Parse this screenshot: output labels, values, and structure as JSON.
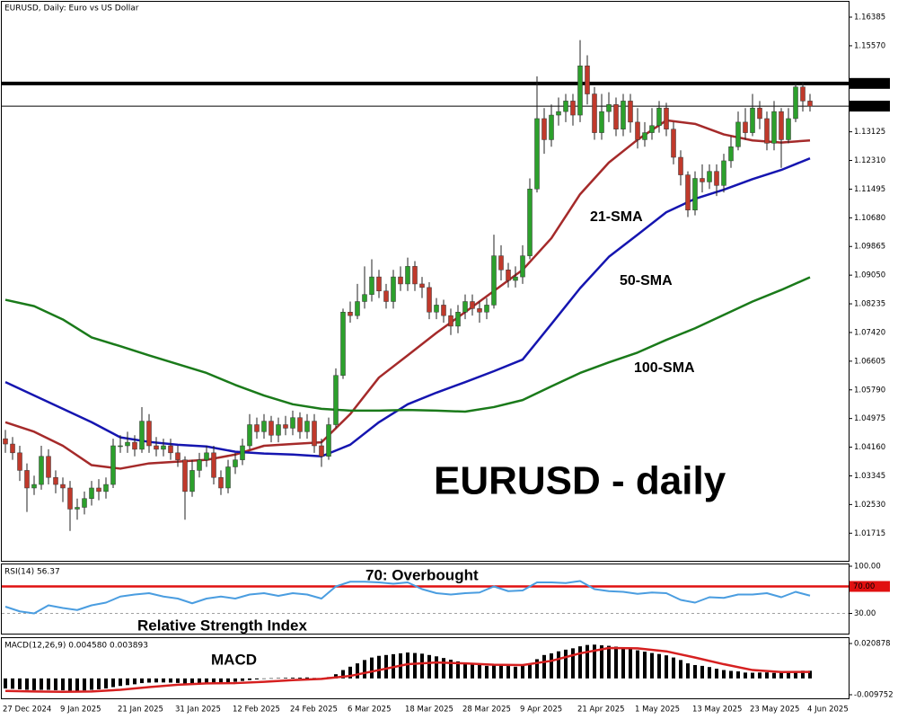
{
  "chart_data": [
    {
      "type": "candlestick",
      "title": "EURUSD, Daily:  Euro vs US Dollar",
      "categories": [
        "27 Dec 2024",
        null,
        null,
        null,
        null,
        null,
        null,
        null,
        "9 Jan 2025",
        null,
        null,
        null,
        null,
        null,
        null,
        null,
        "21 Jan 2025",
        null,
        null,
        null,
        null,
        null,
        null,
        null,
        "31 Jan 2025",
        null,
        null,
        null,
        null,
        null,
        null,
        null,
        "12 Feb 2025",
        null,
        null,
        null,
        null,
        null,
        null,
        null,
        "24 Feb 2025",
        null,
        null,
        null,
        null,
        null,
        null,
        null,
        "6 Mar 2025",
        null,
        null,
        null,
        null,
        null,
        null,
        null,
        "18 Mar 2025",
        null,
        null,
        null,
        null,
        null,
        null,
        null,
        "28 Mar 2025",
        null,
        null,
        null,
        null,
        null,
        null,
        null,
        "9 Apr 2025",
        null,
        null,
        null,
        null,
        null,
        null,
        null,
        "21 Apr 2025",
        null,
        null,
        null,
        null,
        null,
        null,
        null,
        "1 May 2025",
        null,
        null,
        null,
        null,
        null,
        null,
        null,
        "13 May 2025",
        null,
        null,
        null,
        null,
        null,
        null,
        null,
        "23 May 2025",
        null,
        null,
        null,
        null,
        null,
        null,
        null,
        "4 Jun 2025"
      ],
      "open": [
        1.044,
        1.0425,
        1.04,
        1.035,
        1.03,
        1.031,
        1.039,
        1.033,
        1.031,
        1.03,
        1.024,
        1.0245,
        1.027,
        1.03,
        1.029,
        1.031,
        1.042,
        1.042,
        1.043,
        1.041,
        1.049,
        1.042,
        1.041,
        1.042,
        1.04,
        1.038,
        1.029,
        1.035,
        1.038,
        1.04,
        1.033,
        1.03,
        1.036,
        1.038,
        1.042,
        1.048,
        1.046,
        1.049,
        1.045,
        1.048,
        1.047,
        1.05,
        1.046,
        1.049,
        1.042,
        1.039,
        1.048,
        1.062,
        1.08,
        1.079,
        1.083,
        1.085,
        1.09,
        1.086,
        1.083,
        1.09,
        1.088,
        1.093,
        1.088,
        1.087,
        1.08,
        1.082,
        1.079,
        1.076,
        1.08,
        1.083,
        1.081,
        1.08,
        1.082,
        1.096,
        1.092,
        1.089,
        1.09,
        1.096,
        1.115,
        1.135,
        1.129,
        1.136,
        1.137,
        1.14,
        1.136,
        1.15,
        1.142,
        1.131,
        1.137,
        1.139,
        1.132,
        1.14,
        1.134,
        1.129,
        1.131,
        1.133,
        1.138,
        1.132,
        1.124,
        1.119,
        1.109,
        1.118,
        1.117,
        1.12,
        1.116,
        1.123,
        1.127,
        1.134,
        1.131,
        1.138,
        1.135,
        1.128,
        1.137,
        1.129,
        1.135,
        1.144,
        1.14
      ],
      "high": [
        1.0465,
        1.0445,
        1.042,
        1.037,
        1.0335,
        1.042,
        1.041,
        1.035,
        1.033,
        1.032,
        1.027,
        1.029,
        1.032,
        1.0325,
        1.033,
        1.044,
        1.045,
        1.046,
        1.045,
        1.053,
        1.051,
        1.0445,
        1.044,
        1.044,
        1.042,
        1.039,
        1.038,
        1.04,
        1.042,
        1.042,
        1.035,
        1.038,
        1.04,
        1.044,
        1.051,
        1.05,
        1.051,
        1.0505,
        1.05,
        1.0505,
        1.052,
        1.0515,
        1.051,
        1.051,
        1.044,
        1.05,
        1.064,
        1.081,
        1.083,
        1.088,
        1.093,
        1.095,
        1.092,
        1.088,
        1.092,
        1.093,
        1.0955,
        1.0945,
        1.09,
        1.0885,
        1.084,
        1.0835,
        1.081,
        1.082,
        1.085,
        1.085,
        1.083,
        1.084,
        1.102,
        1.099,
        1.094,
        1.093,
        1.099,
        1.118,
        1.147,
        1.138,
        1.139,
        1.141,
        1.142,
        1.142,
        1.1573,
        1.153,
        1.144,
        1.142,
        1.1425,
        1.141,
        1.142,
        1.142,
        1.138,
        1.134,
        1.138,
        1.14,
        1.1395,
        1.134,
        1.126,
        1.12,
        1.12,
        1.122,
        1.122,
        1.122,
        1.125,
        1.13,
        1.137,
        1.138,
        1.142,
        1.14,
        1.137,
        1.14,
        1.138,
        1.138,
        1.145,
        1.1455,
        1.142
      ],
      "low": [
        1.04,
        1.038,
        1.032,
        1.0232,
        1.028,
        1.0295,
        1.031,
        1.0285,
        1.026,
        1.0178,
        1.021,
        1.0225,
        1.025,
        1.0265,
        1.027,
        1.03,
        1.04,
        1.04,
        1.039,
        1.04,
        1.04,
        1.039,
        1.039,
        1.038,
        1.036,
        1.021,
        1.0275,
        1.033,
        1.036,
        1.031,
        1.028,
        1.0285,
        1.034,
        1.0365,
        1.041,
        1.044,
        1.044,
        1.043,
        1.043,
        1.045,
        1.045,
        1.044,
        1.044,
        1.04,
        1.036,
        1.038,
        1.047,
        1.061,
        1.077,
        1.078,
        1.081,
        1.083,
        1.084,
        1.081,
        1.081,
        1.086,
        1.086,
        1.086,
        1.084,
        1.078,
        1.078,
        1.077,
        1.0735,
        1.074,
        1.078,
        1.079,
        1.077,
        1.078,
        1.081,
        1.089,
        1.087,
        1.087,
        1.088,
        1.095,
        1.114,
        1.125,
        1.127,
        1.133,
        1.134,
        1.133,
        1.134,
        1.139,
        1.129,
        1.129,
        1.134,
        1.13,
        1.13,
        1.131,
        1.1265,
        1.127,
        1.129,
        1.131,
        1.13,
        1.122,
        1.116,
        1.107,
        1.1075,
        1.114,
        1.115,
        1.113,
        1.114,
        1.121,
        1.126,
        1.129,
        1.13,
        1.132,
        1.126,
        1.126,
        1.121,
        1.128,
        1.134,
        1.137,
        1.137
      ],
      "close": [
        1.0425,
        1.04,
        1.035,
        1.03,
        1.031,
        1.039,
        1.033,
        1.031,
        1.03,
        1.024,
        1.0245,
        1.027,
        1.03,
        1.029,
        1.031,
        1.042,
        1.042,
        1.043,
        1.041,
        1.049,
        1.042,
        1.041,
        1.042,
        1.04,
        1.038,
        1.029,
        1.035,
        1.038,
        1.04,
        1.033,
        1.03,
        1.036,
        1.038,
        1.042,
        1.048,
        1.046,
        1.049,
        1.045,
        1.048,
        1.047,
        1.05,
        1.046,
        1.049,
        1.042,
        1.039,
        1.048,
        1.062,
        1.08,
        1.079,
        1.083,
        1.085,
        1.09,
        1.086,
        1.083,
        1.09,
        1.088,
        1.093,
        1.088,
        1.087,
        1.08,
        1.082,
        1.079,
        1.076,
        1.08,
        1.083,
        1.081,
        1.08,
        1.082,
        1.096,
        1.092,
        1.089,
        1.09,
        1.096,
        1.115,
        1.135,
        1.129,
        1.136,
        1.137,
        1.14,
        1.136,
        1.15,
        1.142,
        1.131,
        1.137,
        1.139,
        1.132,
        1.14,
        1.134,
        1.129,
        1.131,
        1.133,
        1.138,
        1.132,
        1.124,
        1.119,
        1.109,
        1.118,
        1.117,
        1.12,
        1.116,
        1.123,
        1.127,
        1.134,
        1.131,
        1.138,
        1.135,
        1.128,
        1.137,
        1.129,
        1.135,
        1.144,
        1.14,
        1.1385
      ],
      "up_color": "#2ca02c",
      "down_color": "#c0392b",
      "series": [
        {
          "name": "21-SMA",
          "color": "#a52a2a",
          "x": [
            0,
            4,
            8,
            12,
            16,
            20,
            24,
            28,
            32,
            36,
            40,
            44,
            48,
            52,
            56,
            60,
            64,
            68,
            72,
            76,
            80,
            84,
            88,
            92,
            96,
            100,
            104,
            108,
            112
          ],
          "values": [
            1.0487,
            1.046,
            1.042,
            1.0365,
            1.0355,
            1.037,
            1.0375,
            1.038,
            1.0395,
            1.042,
            1.0425,
            1.043,
            1.051,
            1.0614,
            1.0677,
            1.0741,
            1.08,
            1.086,
            1.092,
            1.101,
            1.1135,
            1.1225,
            1.129,
            1.1345,
            1.1335,
            1.1305,
            1.1288,
            1.1282,
            1.1288
          ]
        },
        {
          "name": "50-SMA",
          "color": "#1515b0",
          "x": [
            0,
            4,
            8,
            12,
            16,
            20,
            24,
            28,
            32,
            36,
            40,
            44,
            48,
            52,
            56,
            60,
            64,
            68,
            72,
            76,
            80,
            84,
            88,
            92,
            96,
            100,
            104,
            108,
            112
          ],
          "values": [
            1.0601,
            1.0563,
            1.0525,
            1.0487,
            1.0444,
            1.0431,
            1.0423,
            1.0418,
            1.0403,
            1.0398,
            1.0395,
            1.039,
            1.0423,
            1.0487,
            1.0538,
            1.0571,
            1.0601,
            1.0632,
            1.0665,
            1.0766,
            1.0868,
            1.0957,
            1.102,
            1.1084,
            1.1122,
            1.1148,
            1.1178,
            1.1204,
            1.1237
          ]
        },
        {
          "name": "100-SMA",
          "color": "#1a7a1a",
          "x": [
            0,
            4,
            8,
            12,
            16,
            20,
            24,
            28,
            32,
            36,
            40,
            44,
            48,
            52,
            56,
            60,
            64,
            68,
            72,
            76,
            80,
            84,
            88,
            92,
            96,
            100,
            104,
            108,
            112
          ],
          "values": [
            1.0835,
            1.0817,
            1.0779,
            1.0728,
            1.0703,
            1.0677,
            1.0652,
            1.0627,
            1.0593,
            1.0563,
            1.0538,
            1.0525,
            1.052,
            1.052,
            1.0522,
            1.052,
            1.0517,
            1.053,
            1.055,
            1.0589,
            1.0627,
            1.0657,
            1.0685,
            1.0721,
            1.0754,
            1.0792,
            1.083,
            1.0863,
            1.0899
          ]
        }
      ],
      "hlines": [
        {
          "value": 1.145,
          "label": "1.14500"
        },
        {
          "value": 1.13854
        }
      ],
      "ylim": [
        1.0093,
        1.1682
      ],
      "yticks": [
        1.16385,
        {
          "value": 1.1557,
          "label": "1.15570"
        },
        1.13125,
        {
          "value": 1.1231,
          "label": "1.12310"
        },
        1.11495,
        {
          "value": 1.1068,
          "label": "1.10680"
        },
        1.09865,
        {
          "value": 1.0905,
          "label": "1.09050"
        },
        1.08235,
        {
          "value": 1.0742,
          "label": "1.07420"
        },
        1.06605,
        {
          "value": 1.0579,
          "label": "1.05790"
        },
        1.04975,
        {
          "value": 1.0416,
          "label": "1.04160"
        },
        1.03345,
        {
          "value": 1.0253,
          "label": "1.02530"
        },
        1.01715
      ],
      "annotations": [
        {
          "text": "EURUSD - daily",
          "color": "#000000"
        }
      ]
    },
    {
      "type": "line",
      "title": "RSI(14) 56.37",
      "x": [
        0,
        2,
        4,
        6,
        8,
        10,
        12,
        14,
        16,
        18,
        20,
        22,
        24,
        26,
        28,
        30,
        32,
        34,
        36,
        38,
        40,
        42,
        44,
        46,
        48,
        50,
        52,
        54,
        56,
        58,
        60,
        62,
        64,
        66,
        68,
        70,
        72,
        74,
        76,
        78,
        80,
        82,
        84,
        86,
        88,
        90,
        92,
        94,
        96,
        98,
        100,
        102,
        104,
        106,
        108,
        110,
        112
      ],
      "values": [
        40,
        33,
        30,
        42,
        38,
        35,
        42,
        46,
        55,
        58,
        60,
        55,
        52,
        45,
        52,
        55,
        52,
        58,
        60,
        56,
        60,
        58,
        52,
        70,
        77,
        77,
        76,
        74,
        76,
        66,
        60,
        58,
        60,
        61,
        70,
        63,
        64,
        76,
        76,
        75,
        78,
        66,
        63,
        62,
        59,
        61,
        60,
        50,
        46,
        54,
        53,
        58,
        58,
        60,
        54,
        62,
        56.37
      ],
      "color": "#4a9de0",
      "ylim": [
        0,
        100
      ],
      "yticks": [
        {
          "value": 100,
          "label": "100.00"
        },
        {
          "value": 30,
          "label": "30.00"
        }
      ],
      "levels": [
        {
          "value": 70,
          "label": "70.00",
          "color": "#e01010"
        },
        {
          "value": 30,
          "color": "#a0a0a0"
        }
      ],
      "annotations": [
        {
          "text": "70: Overbought",
          "color": "#e01010"
        },
        {
          "text": "Relative Strength Index",
          "color": "#3d8fe0"
        }
      ]
    },
    {
      "type": "bar",
      "title": "MACD(12,26,9) 0.004580 0.003893",
      "values": [
        -0.006,
        -0.0062,
        -0.0065,
        -0.0068,
        -0.007,
        -0.0068,
        -0.0068,
        -0.007,
        -0.0071,
        -0.0073,
        -0.0074,
        -0.0072,
        -0.0068,
        -0.0065,
        -0.006,
        -0.0052,
        -0.0045,
        -0.004,
        -0.0035,
        -0.0028,
        -0.0025,
        -0.0024,
        -0.0024,
        -0.0025,
        -0.0027,
        -0.0032,
        -0.003,
        -0.0028,
        -0.0025,
        -0.0026,
        -0.0027,
        -0.0024,
        -0.002,
        -0.0015,
        -0.001,
        -0.0006,
        -0.0002,
        0.0001,
        0.0002,
        0.0004,
        0.0005,
        0.0005,
        0.0006,
        0.0003,
        0.0001,
        0.0008,
        0.0025,
        0.005,
        0.007,
        0.009,
        0.011,
        0.0125,
        0.0135,
        0.014,
        0.0145,
        0.015,
        0.0155,
        0.0152,
        0.0148,
        0.014,
        0.0132,
        0.0122,
        0.0112,
        0.0102,
        0.0095,
        0.0088,
        0.008,
        0.0075,
        0.008,
        0.0078,
        0.0074,
        0.007,
        0.0075,
        0.009,
        0.0115,
        0.014,
        0.015,
        0.0162,
        0.0172,
        0.018,
        0.0192,
        0.02,
        0.0202,
        0.0198,
        0.0195,
        0.019,
        0.0183,
        0.0178,
        0.0168,
        0.016,
        0.0152,
        0.0146,
        0.0138,
        0.0125,
        0.011,
        0.009,
        0.008,
        0.0075,
        0.0068,
        0.0058,
        0.005,
        0.0045,
        0.0042,
        0.0035,
        0.0034,
        0.0035,
        0.0036,
        0.0033,
        0.0038,
        0.004,
        0.0042,
        0.0046,
        0.00458
      ],
      "color": "#000000",
      "signal": {
        "color": "#d62020",
        "x": [
          0,
          4,
          8,
          12,
          16,
          20,
          24,
          28,
          32,
          36,
          40,
          44,
          48,
          52,
          56,
          60,
          64,
          68,
          72,
          76,
          80,
          84,
          88,
          92,
          96,
          100,
          104,
          108,
          112
        ],
        "values": [
          -0.0075,
          -0.0078,
          -0.008,
          -0.0078,
          -0.0068,
          -0.0052,
          -0.0038,
          -0.003,
          -0.0028,
          -0.002,
          -0.001,
          -0.0003,
          0.0015,
          0.005,
          0.0085,
          0.0095,
          0.009,
          0.0082,
          0.008,
          0.0105,
          0.015,
          0.0182,
          0.018,
          0.0162,
          0.0125,
          0.0085,
          0.005,
          0.0038,
          0.003893
        ]
      },
      "ylim": [
        -0.009752,
        0.020878
      ],
      "yticks": [
        0.020878,
        -0.009752
      ],
      "annotations": [
        {
          "text": "MACD",
          "color": "#000000"
        }
      ]
    }
  ]
}
